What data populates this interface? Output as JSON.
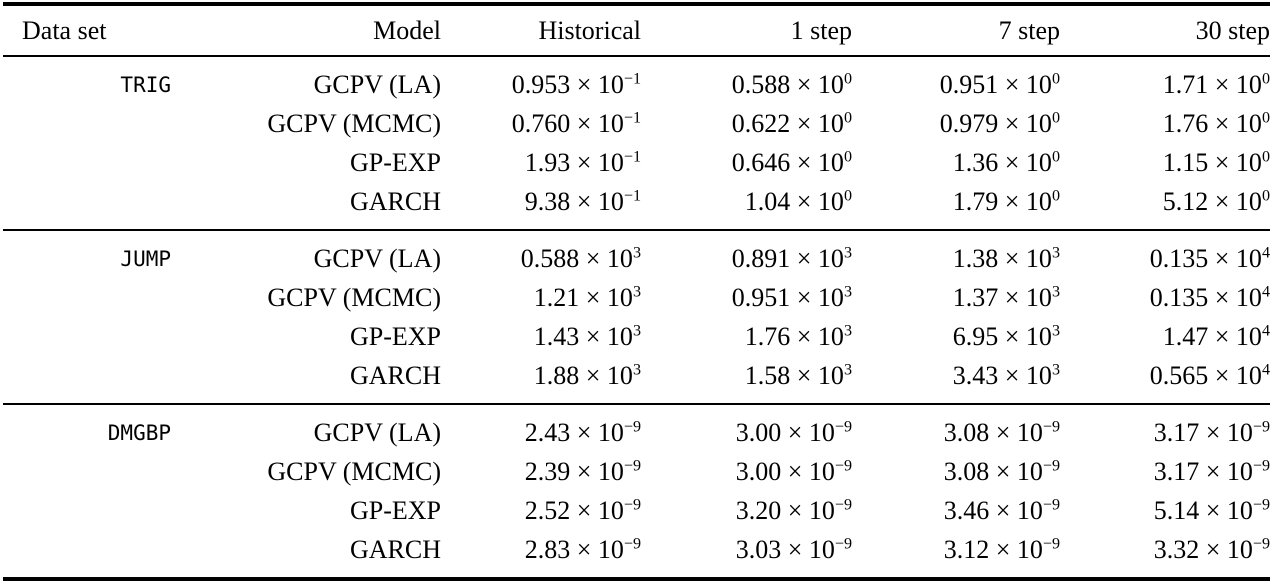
{
  "table": {
    "columns": [
      "Data set",
      "Model",
      "Historical",
      "1 step",
      "7 step",
      "30 step"
    ],
    "times_sign": "×",
    "base": "10",
    "sections": [
      {
        "dataset": "TRIG",
        "rows": [
          {
            "model": "GCPV (LA)",
            "values": [
              [
                "0.953",
                "−1"
              ],
              [
                "0.588",
                "0"
              ],
              [
                "0.951",
                "0"
              ],
              [
                "1.71",
                "0"
              ]
            ]
          },
          {
            "model": "GCPV (MCMC)",
            "values": [
              [
                "0.760",
                "−1"
              ],
              [
                "0.622",
                "0"
              ],
              [
                "0.979",
                "0"
              ],
              [
                "1.76",
                "0"
              ]
            ]
          },
          {
            "model": "GP-EXP",
            "values": [
              [
                "1.93",
                "−1"
              ],
              [
                "0.646",
                "0"
              ],
              [
                "1.36",
                "0"
              ],
              [
                "1.15",
                "0"
              ]
            ]
          },
          {
            "model": "GARCH",
            "values": [
              [
                "9.38",
                "−1"
              ],
              [
                "1.04",
                "0"
              ],
              [
                "1.79",
                "0"
              ],
              [
                "5.12",
                "0"
              ]
            ]
          }
        ]
      },
      {
        "dataset": "JUMP",
        "rows": [
          {
            "model": "GCPV (LA)",
            "values": [
              [
                "0.588",
                "3"
              ],
              [
                "0.891",
                "3"
              ],
              [
                "1.38",
                "3"
              ],
              [
                "0.135",
                "4"
              ]
            ]
          },
          {
            "model": "GCPV (MCMC)",
            "values": [
              [
                "1.21",
                "3"
              ],
              [
                "0.951",
                "3"
              ],
              [
                "1.37",
                "3"
              ],
              [
                "0.135",
                "4"
              ]
            ]
          },
          {
            "model": "GP-EXP",
            "values": [
              [
                "1.43",
                "3"
              ],
              [
                "1.76",
                "3"
              ],
              [
                "6.95",
                "3"
              ],
              [
                "1.47",
                "4"
              ]
            ]
          },
          {
            "model": "GARCH",
            "values": [
              [
                "1.88",
                "3"
              ],
              [
                "1.58",
                "3"
              ],
              [
                "3.43",
                "3"
              ],
              [
                "0.565",
                "4"
              ]
            ]
          }
        ]
      },
      {
        "dataset": "DMGBP",
        "rows": [
          {
            "model": "GCPV (LA)",
            "values": [
              [
                "2.43",
                "−9"
              ],
              [
                "3.00",
                "−9"
              ],
              [
                "3.08",
                "−9"
              ],
              [
                "3.17",
                "−9"
              ]
            ]
          },
          {
            "model": "GCPV (MCMC)",
            "values": [
              [
                "2.39",
                "−9"
              ],
              [
                "3.00",
                "−9"
              ],
              [
                "3.08",
                "−9"
              ],
              [
                "3.17",
                "−9"
              ]
            ]
          },
          {
            "model": "GP-EXP",
            "values": [
              [
                "2.52",
                "−9"
              ],
              [
                "3.20",
                "−9"
              ],
              [
                "3.46",
                "−9"
              ],
              [
                "5.14",
                "−9"
              ]
            ]
          },
          {
            "model": "GARCH",
            "values": [
              [
                "2.83",
                "−9"
              ],
              [
                "3.03",
                "−9"
              ],
              [
                "3.12",
                "−9"
              ],
              [
                "3.32",
                "−9"
              ]
            ]
          }
        ]
      }
    ]
  },
  "colors": {
    "text": "#000000",
    "background": "#ffffff",
    "rule": "#000000"
  }
}
